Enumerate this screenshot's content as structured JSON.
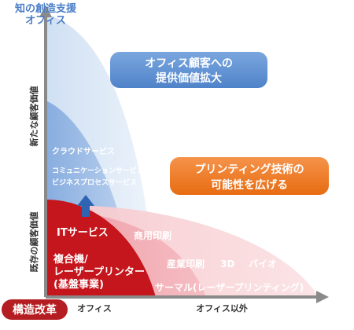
{
  "top_label": {
    "line1": "知の創造支援",
    "line2": "オフィス"
  },
  "y_axis": {
    "upper": "新たな顧客価値",
    "lower": "既存の顧客価値"
  },
  "x_axis": {
    "office": "オフィス",
    "outside": "オフィス以外"
  },
  "badge": "構造改革",
  "callouts": {
    "office": {
      "line1": "オフィス顧客への",
      "line2": "提供価値拡大"
    },
    "printing": {
      "line1": "プリンティング技術の",
      "line2": "可能性を広げる"
    }
  },
  "regions": {
    "cloud": "クラウドサービス",
    "comm": "コミュニケーションサービス/",
    "bps": "ビジネスプロセスサービス",
    "it": "ITサービス",
    "mfp_line1": "複合機/",
    "mfp_line2": "レーザープリンター",
    "mfp_line3": "(基盤事業)",
    "commercial": "商用印刷",
    "industrial": "産業印刷",
    "d3": "3D",
    "bio": "バイオ",
    "thermal": "サーマル(レーザープリンティング)"
  },
  "colors": {
    "office_light": "#dce8f6",
    "office_mid": "#9bbce6",
    "office_dark": "#5d8fd3",
    "core_red": "#c4161c",
    "pink_outer": "#f9dadd",
    "pink_mid": "#f2a9b1",
    "axis": "#8a8a8a",
    "callout_blue": "#5b8fd1",
    "callout_orange": "#ef7a1e",
    "badge": "#b41e22",
    "top_label": "#4a7ec7"
  }
}
